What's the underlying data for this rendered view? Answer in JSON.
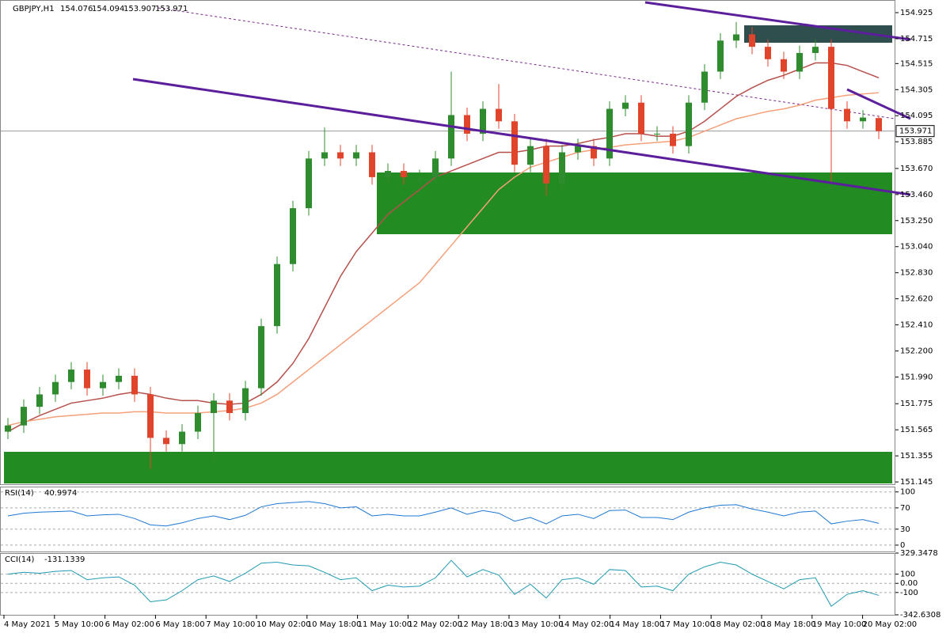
{
  "chart_data": [
    {
      "type": "candlestick",
      "title": "GBPJPY,H1",
      "time_labels": [
        "4 May 2021",
        "5 May 10:00",
        "6 May 02:00",
        "6 May 18:00",
        "7 May 10:00",
        "10 May 02:00",
        "10 May 18:00",
        "11 May 10:00",
        "12 May 02:00",
        "12 May 18:00",
        "13 May 10:00",
        "14 May 02:00",
        "14 May 18:00",
        "17 May 10:00",
        "18 May 02:00",
        "18 May 18:00",
        "19 May 10:00",
        "20 May 02:00"
      ],
      "open": [
        151.55,
        151.6,
        151.75,
        151.85,
        151.95,
        152.05,
        151.9,
        151.95,
        152.0,
        151.85,
        151.5,
        151.45,
        151.55,
        151.7,
        151.8,
        151.7,
        151.9,
        152.4,
        152.9,
        153.35,
        153.75,
        153.8,
        153.75,
        153.8,
        153.6,
        153.65,
        153.6,
        153.6,
        153.75,
        154.1,
        153.95,
        154.15,
        154.05,
        153.7,
        153.85,
        153.55,
        153.8,
        153.85,
        153.75,
        154.15,
        154.2,
        153.95,
        153.95,
        153.85,
        154.2,
        154.45,
        154.7,
        154.75,
        154.65,
        154.55,
        154.45,
        154.6,
        154.65,
        154.15,
        154.05,
        154.076
      ],
      "high": [
        151.66,
        151.81,
        151.91,
        152.01,
        152.11,
        152.11,
        152.01,
        152.06,
        152.06,
        151.91,
        151.56,
        151.61,
        151.76,
        151.86,
        151.86,
        151.96,
        152.46,
        152.96,
        153.41,
        153.81,
        154.0,
        153.86,
        153.86,
        153.86,
        153.71,
        153.71,
        153.66,
        153.81,
        154.45,
        154.16,
        154.21,
        154.35,
        154.11,
        153.91,
        153.91,
        153.86,
        153.91,
        153.91,
        154.21,
        154.26,
        154.26,
        154.01,
        154.01,
        154.26,
        154.51,
        154.76,
        154.85,
        154.81,
        154.71,
        154.61,
        154.66,
        154.71,
        154.71,
        154.21,
        154.14,
        154.094
      ],
      "low": [
        151.49,
        151.54,
        151.69,
        151.79,
        151.89,
        151.84,
        151.84,
        151.89,
        151.79,
        151.25,
        151.39,
        151.39,
        151.49,
        151.3,
        151.64,
        151.64,
        151.84,
        152.34,
        152.84,
        153.29,
        153.69,
        153.69,
        153.69,
        153.54,
        153.54,
        153.54,
        153.54,
        153.54,
        153.69,
        153.89,
        153.89,
        153.99,
        153.64,
        153.64,
        153.45,
        153.49,
        153.74,
        153.69,
        153.69,
        154.09,
        153.89,
        153.89,
        153.79,
        153.79,
        154.14,
        154.39,
        154.64,
        154.59,
        154.49,
        154.39,
        154.39,
        154.54,
        153.55,
        153.99,
        153.99,
        153.907
      ],
      "close": [
        151.6,
        151.75,
        151.85,
        151.95,
        152.05,
        151.9,
        151.95,
        152.0,
        151.85,
        151.5,
        151.45,
        151.55,
        151.7,
        151.8,
        151.7,
        151.9,
        152.4,
        152.9,
        153.35,
        153.75,
        153.8,
        153.75,
        153.8,
        153.6,
        153.65,
        153.6,
        153.6,
        153.75,
        154.1,
        153.95,
        154.15,
        154.05,
        153.7,
        153.85,
        153.55,
        153.8,
        153.85,
        153.75,
        154.15,
        154.2,
        153.95,
        153.95,
        153.85,
        154.2,
        154.45,
        154.7,
        154.75,
        154.65,
        154.55,
        154.45,
        154.6,
        154.65,
        154.15,
        154.05,
        154.08,
        153.971
      ],
      "up_color": "#2e8b2e",
      "down_color": "#e0452b",
      "series": [
        {
          "color": "#b5504b",
          "values": [
            151.55,
            151.62,
            151.68,
            151.73,
            151.78,
            151.8,
            151.82,
            151.85,
            151.87,
            151.85,
            151.82,
            151.8,
            151.8,
            151.78,
            151.77,
            151.78,
            151.85,
            151.95,
            152.1,
            152.3,
            152.55,
            152.8,
            153.0,
            153.15,
            153.3,
            153.4,
            153.5,
            153.6,
            153.65,
            153.7,
            153.75,
            153.8,
            153.8,
            153.82,
            153.85,
            153.85,
            153.87,
            153.9,
            153.92,
            153.95,
            153.95,
            153.93,
            153.93,
            153.97,
            154.05,
            154.15,
            154.25,
            154.32,
            154.38,
            154.42,
            154.47,
            154.52,
            154.52,
            154.5,
            154.45,
            154.4
          ]
        },
        {
          "color": "#f4a07a",
          "values": [
            151.6,
            151.63,
            151.65,
            151.67,
            151.68,
            151.69,
            151.7,
            151.7,
            151.71,
            151.71,
            151.7,
            151.7,
            151.7,
            151.71,
            151.72,
            151.74,
            151.78,
            151.85,
            151.95,
            152.05,
            152.15,
            152.25,
            152.35,
            152.45,
            152.55,
            152.65,
            152.75,
            152.9,
            153.05,
            153.2,
            153.35,
            153.5,
            153.6,
            153.68,
            153.72,
            153.76,
            153.8,
            153.82,
            153.84,
            153.86,
            153.87,
            153.88,
            153.89,
            153.92,
            153.97,
            154.02,
            154.07,
            154.1,
            154.13,
            154.15,
            154.18,
            154.22,
            154.24,
            154.26,
            154.27,
            154.28
          ]
        }
      ],
      "ylim": [
        151.12,
        154.995
      ],
      "yticks": [
        154.925,
        154.715,
        154.515,
        154.305,
        154.095,
        153.885,
        {
          "value": 153.67,
          "label": "153.670"
        },
        {
          "value": 153.46,
          "label": "153.460"
        },
        {
          "value": 153.25,
          "label": "153.250"
        },
        {
          "value": 153.04,
          "label": "153.040"
        },
        {
          "value": 152.83,
          "label": "152.830"
        },
        {
          "value": 152.62,
          "label": "152.620"
        },
        {
          "value": 152.41,
          "label": "152.410"
        },
        {
          "value": 152.2,
          "label": "152.200"
        },
        {
          "value": 151.99,
          "label": "151.990"
        },
        151.775,
        151.565,
        151.355,
        151.145
      ]
    },
    {
      "type": "line",
      "title": "RSI(14)",
      "color": "#1f77d0",
      "values": [
        55,
        60,
        62,
        63,
        64,
        55,
        57,
        58,
        50,
        38,
        36,
        42,
        50,
        55,
        48,
        56,
        72,
        78,
        80,
        82,
        78,
        70,
        72,
        55,
        58,
        55,
        55,
        62,
        70,
        58,
        65,
        60,
        45,
        52,
        40,
        55,
        58,
        50,
        65,
        66,
        52,
        52,
        48,
        62,
        70,
        75,
        76,
        68,
        62,
        55,
        62,
        64,
        40,
        45,
        48,
        40.9974
      ],
      "ylim": [
        -12,
        110
      ],
      "yticks": [
        100,
        70,
        30,
        0
      ]
    },
    {
      "type": "line",
      "title": "CCI(14)",
      "color": "#1f9ab0",
      "values": [
        100,
        120,
        110,
        130,
        140,
        40,
        60,
        70,
        -20,
        -200,
        -180,
        -80,
        40,
        80,
        20,
        110,
        220,
        230,
        200,
        190,
        120,
        40,
        60,
        -80,
        -20,
        -40,
        -30,
        60,
        250,
        70,
        150,
        90,
        -120,
        -10,
        -160,
        40,
        60,
        -10,
        150,
        140,
        -40,
        -30,
        -80,
        100,
        180,
        230,
        200,
        100,
        20,
        -60,
        40,
        60,
        -250,
        -120,
        -80,
        -131.1339
      ],
      "ylim": [
        -342.6308,
        329.3478
      ],
      "yticks": [
        329.3478,
        100,
        {
          "value": 0,
          "label": "0.00"
        },
        -100,
        -342.6308
      ]
    }
  ]
}
